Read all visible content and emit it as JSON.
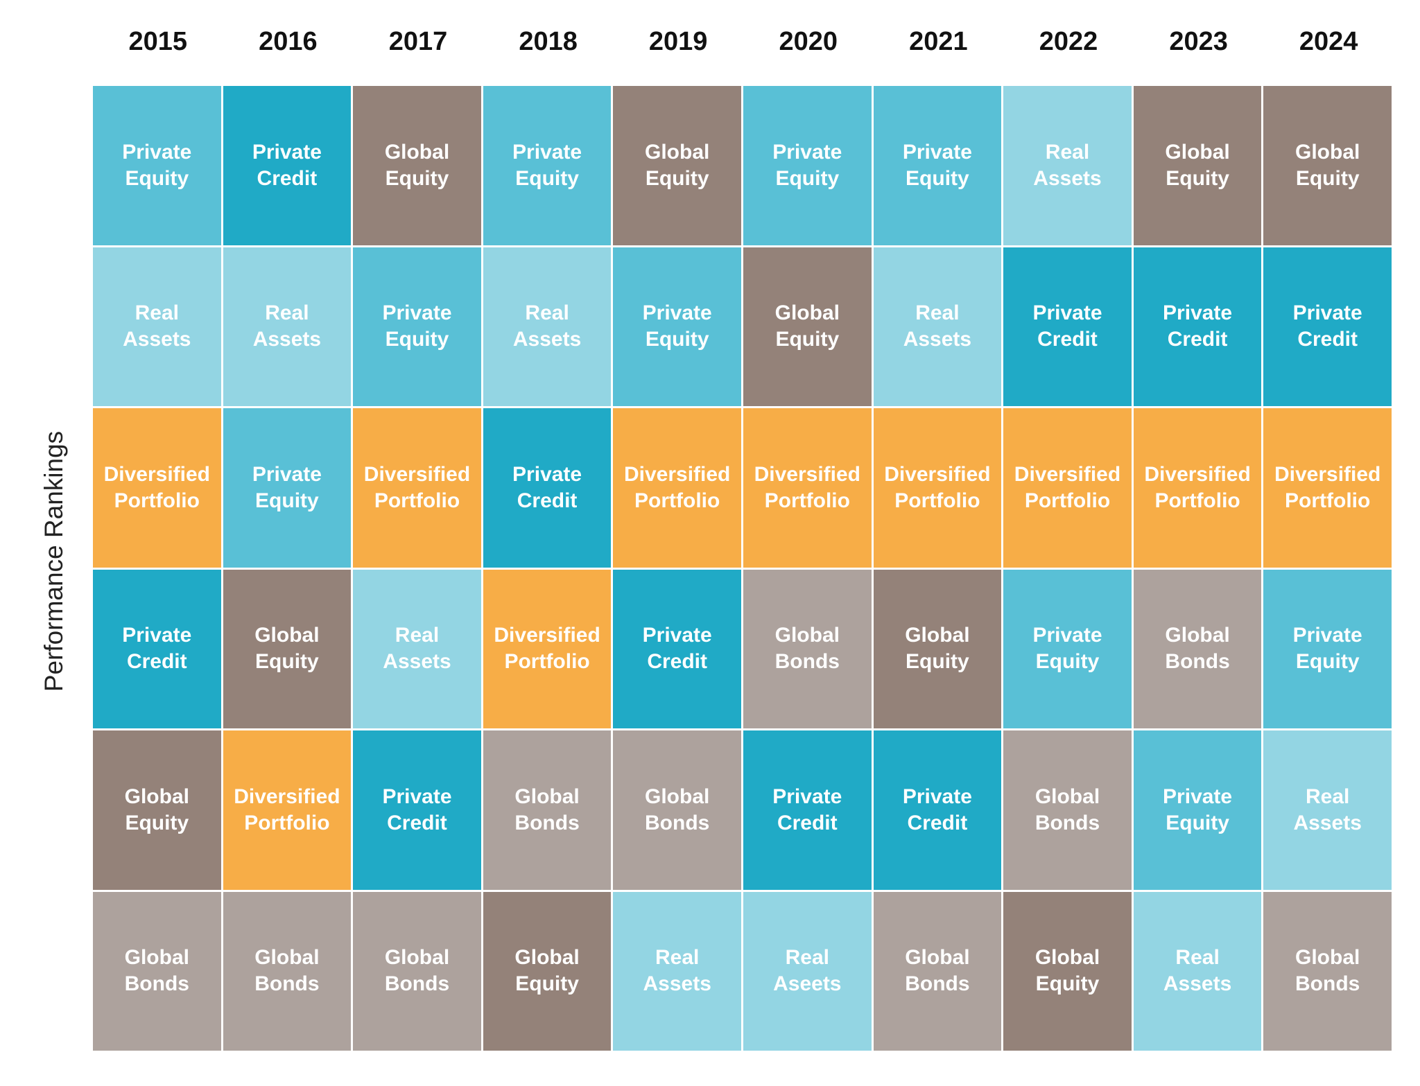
{
  "chart_data": {
    "type": "table",
    "title": "",
    "ylabel": "Performance Rankings",
    "years": [
      "2015",
      "2016",
      "2017",
      "2018",
      "2019",
      "2020",
      "2021",
      "2022",
      "2023",
      "2024"
    ],
    "colors": {
      "Private Equity": "#59C0D6",
      "Private Credit": "#20AAC6",
      "Global Equity": "#948279",
      "Real Assets": "#93D5E3",
      "Diversified Portfolio": "#F7AD47",
      "Global Bonds": "#ADA29D"
    },
    "rankings": [
      [
        {
          "label": [
            "Private",
            "Equity"
          ],
          "category": "Private Equity"
        },
        {
          "label": [
            "Real",
            "Assets"
          ],
          "category": "Real Assets"
        },
        {
          "label": [
            "Diversified",
            "Portfolio"
          ],
          "category": "Diversified Portfolio"
        },
        {
          "label": [
            "Private",
            "Credit"
          ],
          "category": "Private Credit"
        },
        {
          "label": [
            "Global",
            "Equity"
          ],
          "category": "Global Equity"
        },
        {
          "label": [
            "Global",
            "Bonds"
          ],
          "category": "Global Bonds"
        }
      ],
      [
        {
          "label": [
            "Private",
            "Credit"
          ],
          "category": "Private Credit"
        },
        {
          "label": [
            "Real",
            "Assets"
          ],
          "category": "Real Assets"
        },
        {
          "label": [
            "Private",
            "Equity"
          ],
          "category": "Private Equity"
        },
        {
          "label": [
            "Global",
            "Equity"
          ],
          "category": "Global Equity"
        },
        {
          "label": [
            "Diversified",
            "Portfolio"
          ],
          "category": "Diversified Portfolio"
        },
        {
          "label": [
            "Global",
            "Bonds"
          ],
          "category": "Global Bonds"
        }
      ],
      [
        {
          "label": [
            "Global",
            "Equity"
          ],
          "category": "Global Equity"
        },
        {
          "label": [
            "Private",
            "Equity"
          ],
          "category": "Private Equity"
        },
        {
          "label": [
            "Diversified",
            "Portfolio"
          ],
          "category": "Diversified Portfolio"
        },
        {
          "label": [
            "Real",
            "Assets"
          ],
          "category": "Real Assets"
        },
        {
          "label": [
            "Private",
            "Credit"
          ],
          "category": "Private Credit"
        },
        {
          "label": [
            "Global",
            "Bonds"
          ],
          "category": "Global Bonds"
        }
      ],
      [
        {
          "label": [
            "Private",
            "Equity"
          ],
          "category": "Private Equity"
        },
        {
          "label": [
            "Real",
            "Assets"
          ],
          "category": "Real Assets"
        },
        {
          "label": [
            "Private",
            "Credit"
          ],
          "category": "Private Credit"
        },
        {
          "label": [
            "Diversified",
            "Portfolio"
          ],
          "category": "Diversified Portfolio"
        },
        {
          "label": [
            "Global",
            "Bonds"
          ],
          "category": "Global Bonds"
        },
        {
          "label": [
            "Global",
            "Equity"
          ],
          "category": "Global Equity"
        }
      ],
      [
        {
          "label": [
            "Global",
            "Equity"
          ],
          "category": "Global Equity"
        },
        {
          "label": [
            "Private",
            "Equity"
          ],
          "category": "Private Equity"
        },
        {
          "label": [
            "Diversified",
            "Portfolio"
          ],
          "category": "Diversified Portfolio"
        },
        {
          "label": [
            "Private",
            "Credit"
          ],
          "category": "Private Credit"
        },
        {
          "label": [
            "Global",
            "Bonds"
          ],
          "category": "Global Bonds"
        },
        {
          "label": [
            "Real",
            "Assets"
          ],
          "category": "Real Assets"
        }
      ],
      [
        {
          "label": [
            "Private",
            "Equity"
          ],
          "category": "Private Equity"
        },
        {
          "label": [
            "Global",
            "Equity"
          ],
          "category": "Global Equity"
        },
        {
          "label": [
            "Diversified",
            "Portfolio"
          ],
          "category": "Diversified Portfolio"
        },
        {
          "label": [
            "Global",
            "Bonds"
          ],
          "category": "Global Bonds"
        },
        {
          "label": [
            "Private",
            "Credit"
          ],
          "category": "Private Credit"
        },
        {
          "label": [
            "Real",
            "Aseets"
          ],
          "category": "Real Assets"
        }
      ],
      [
        {
          "label": [
            "Private",
            "Equity"
          ],
          "category": "Private Equity"
        },
        {
          "label": [
            "Real",
            "Assets"
          ],
          "category": "Real Assets"
        },
        {
          "label": [
            "Diversified",
            "Portfolio"
          ],
          "category": "Diversified Portfolio"
        },
        {
          "label": [
            "Global",
            "Equity"
          ],
          "category": "Global Equity"
        },
        {
          "label": [
            "Private",
            "Credit"
          ],
          "category": "Private Credit"
        },
        {
          "label": [
            "Global",
            "Bonds"
          ],
          "category": "Global Bonds"
        }
      ],
      [
        {
          "label": [
            "Real",
            "Assets"
          ],
          "category": "Real Assets"
        },
        {
          "label": [
            "Private",
            "Credit"
          ],
          "category": "Private Credit"
        },
        {
          "label": [
            "Diversified",
            "Portfolio"
          ],
          "category": "Diversified Portfolio"
        },
        {
          "label": [
            "Private",
            "Equity"
          ],
          "category": "Private Equity"
        },
        {
          "label": [
            "Global",
            "Bonds"
          ],
          "category": "Global Bonds"
        },
        {
          "label": [
            "Global",
            "Equity"
          ],
          "category": "Global Equity"
        }
      ],
      [
        {
          "label": [
            "Global",
            "Equity"
          ],
          "category": "Global Equity"
        },
        {
          "label": [
            "Private",
            "Credit"
          ],
          "category": "Private Credit"
        },
        {
          "label": [
            "Diversified",
            "Portfolio"
          ],
          "category": "Diversified Portfolio"
        },
        {
          "label": [
            "Global",
            "Bonds"
          ],
          "category": "Global Bonds"
        },
        {
          "label": [
            "Private",
            "Equity"
          ],
          "category": "Private Equity"
        },
        {
          "label": [
            "Real",
            "Assets"
          ],
          "category": "Real Assets"
        }
      ],
      [
        {
          "label": [
            "Global",
            "Equity"
          ],
          "category": "Global Equity"
        },
        {
          "label": [
            "Private",
            "Credit"
          ],
          "category": "Private Credit"
        },
        {
          "label": [
            "Diversified",
            "Portfolio"
          ],
          "category": "Diversified Portfolio"
        },
        {
          "label": [
            "Private",
            "Equity"
          ],
          "category": "Private Equity"
        },
        {
          "label": [
            "Real",
            "Assets"
          ],
          "category": "Real Assets"
        },
        {
          "label": [
            "Global",
            "Bonds"
          ],
          "category": "Global Bonds"
        }
      ]
    ]
  }
}
